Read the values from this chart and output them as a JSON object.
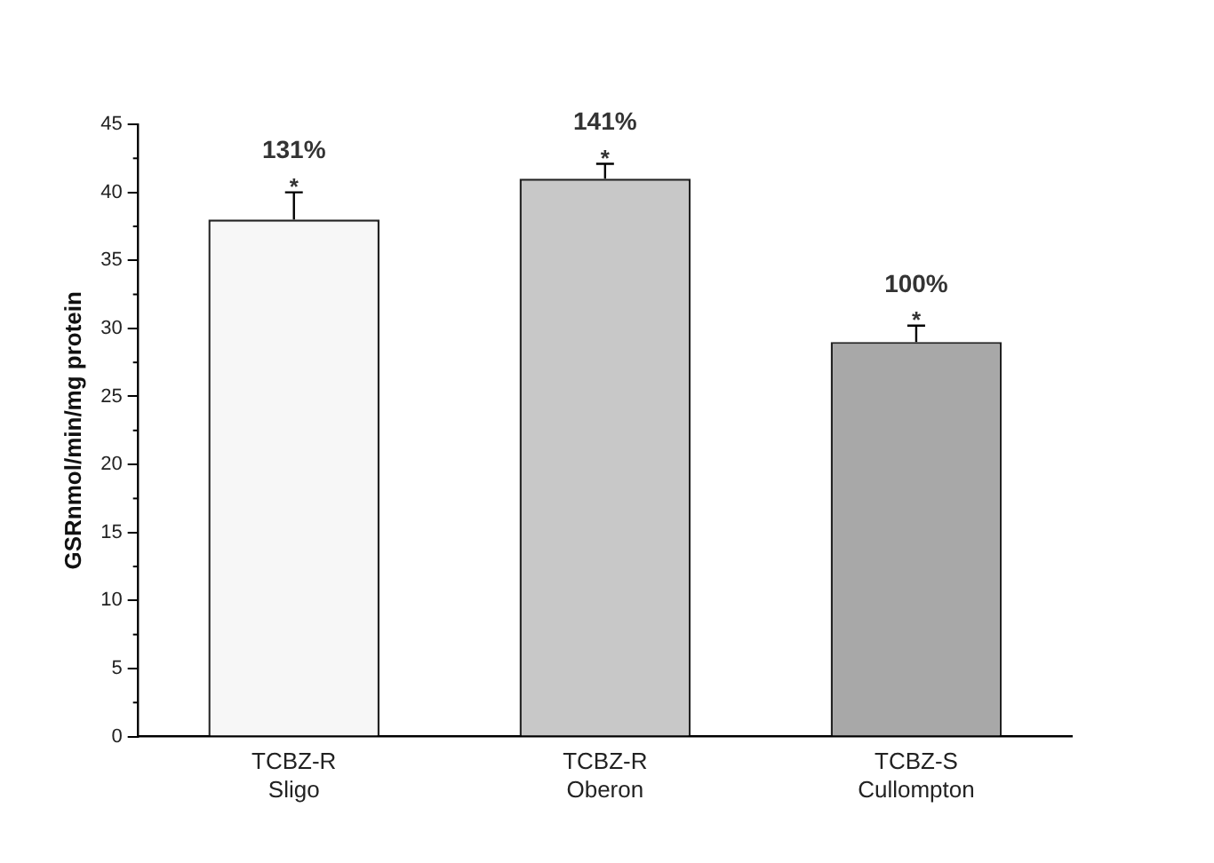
{
  "chart_data": {
    "type": "bar",
    "ylabel": "GSRnmol/min/mg protein",
    "categories": [
      "TCBZ-R\nSligo",
      "TCBZ-R\nOberon",
      "TCBZ-S\nCullompton"
    ],
    "values": [
      38,
      41,
      29
    ],
    "errors": [
      [
        38,
        40
      ],
      [
        41,
        42.1
      ],
      [
        29,
        30.2
      ]
    ],
    "colors": [
      "#f7f7f7",
      "#c8c8c8",
      "#a8a8a8"
    ],
    "ylim": [
      0,
      45
    ],
    "yticks": [
      0,
      5,
      10,
      15,
      20,
      25,
      30,
      35,
      40,
      45
    ],
    "grid": false,
    "legend": false,
    "annotations": [
      "131%",
      "*",
      "141%",
      "*",
      "100%",
      "*"
    ]
  }
}
